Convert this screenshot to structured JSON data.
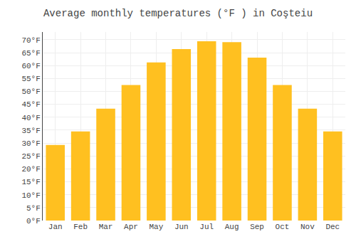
{
  "chart_data": {
    "type": "bar",
    "title": "Average monthly temperatures (°F ) in Coşteiu",
    "categories": [
      "Jan",
      "Feb",
      "Mar",
      "Apr",
      "May",
      "Jun",
      "Jul",
      "Aug",
      "Sep",
      "Oct",
      "Nov",
      "Dec"
    ],
    "values": [
      29.3,
      34.5,
      43.3,
      52.5,
      61.2,
      66.4,
      69.4,
      69.1,
      63.1,
      52.5,
      43.3,
      34.5
    ],
    "color": "#FFC020",
    "ylim": [
      0,
      73
    ],
    "yticks": [
      {
        "value": 0,
        "label": "0°F"
      },
      {
        "value": 5,
        "label": "5°F"
      },
      {
        "value": 10,
        "label": "10°F"
      },
      {
        "value": 15,
        "label": "15°F"
      },
      {
        "value": 20,
        "label": "20°F"
      },
      {
        "value": 25,
        "label": "25°F"
      },
      {
        "value": 30,
        "label": "30°F"
      },
      {
        "value": 35,
        "label": "35°F"
      },
      {
        "value": 40,
        "label": "40°F"
      },
      {
        "value": 45,
        "label": "45°F"
      },
      {
        "value": 50,
        "label": "50°F"
      },
      {
        "value": 55,
        "label": "55°F"
      },
      {
        "value": 60,
        "label": "60°F"
      },
      {
        "value": 65,
        "label": "65°F"
      },
      {
        "value": 70,
        "label": "70°F"
      }
    ],
    "grid": true
  }
}
